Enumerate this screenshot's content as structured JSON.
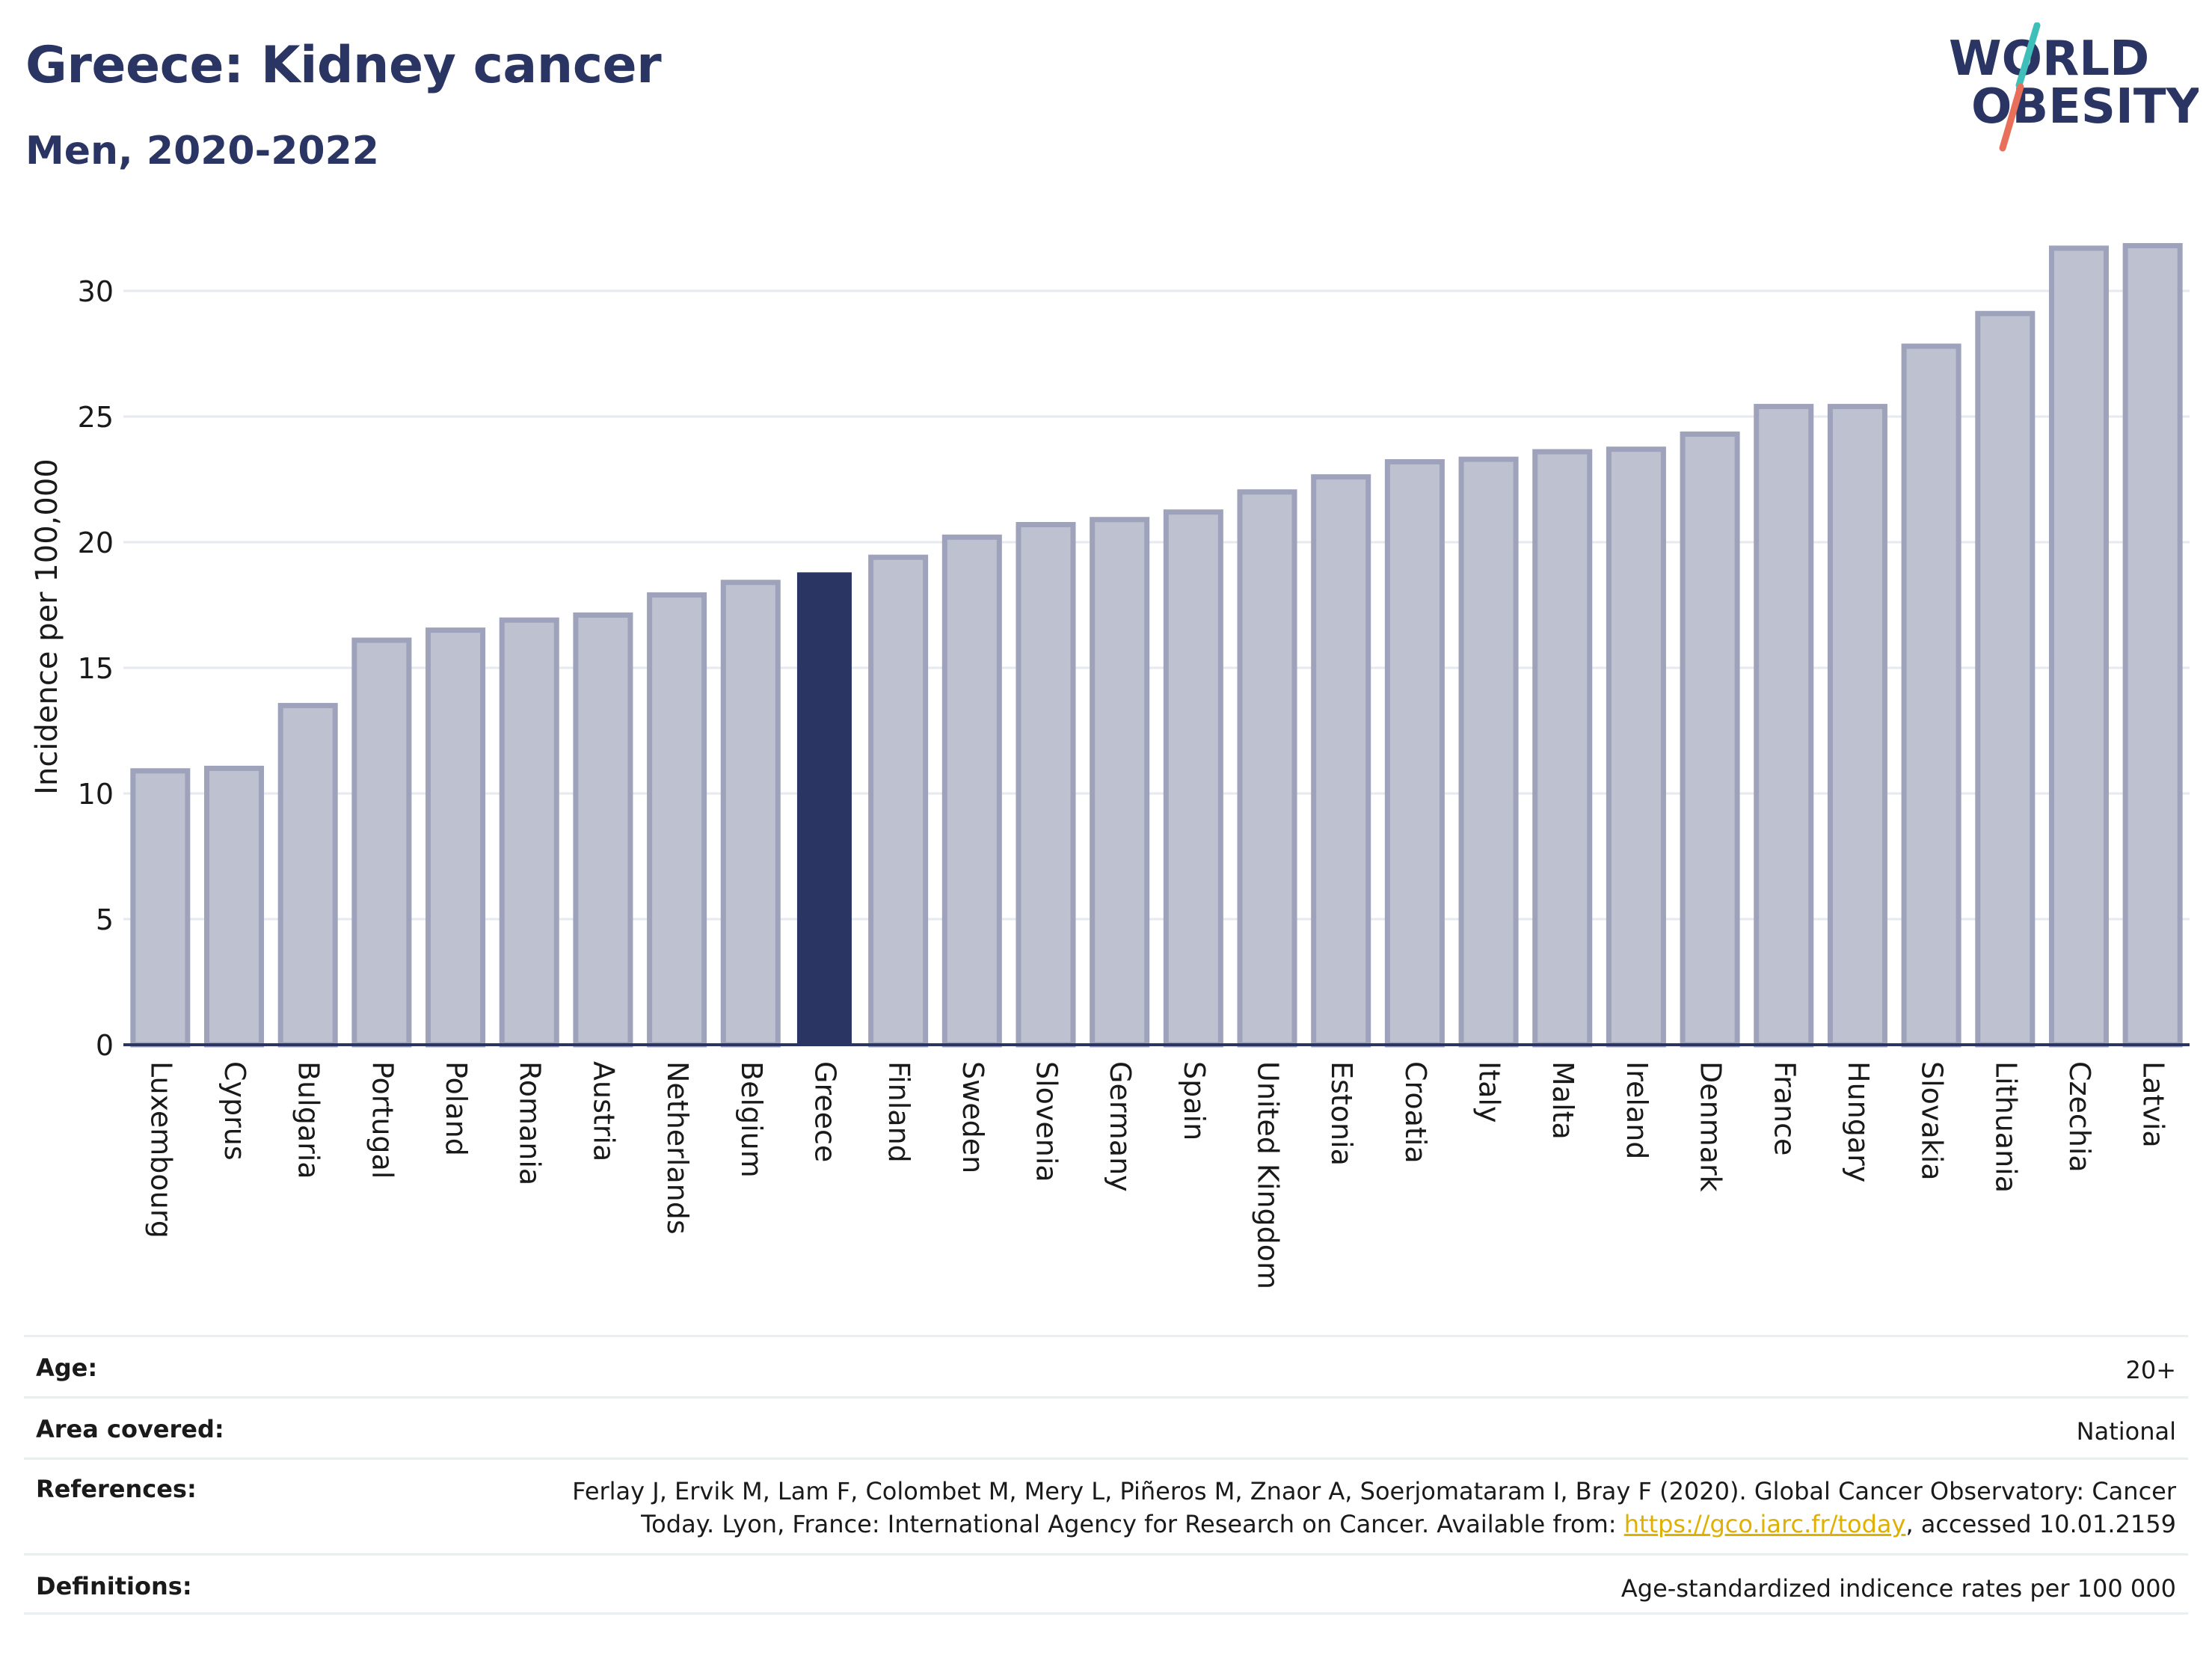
{
  "header": {
    "title": "Greece: Kidney cancer",
    "subtitle": "Men, 2020-2022"
  },
  "logo": {
    "line1": "WORLD",
    "line2": "OBESITY",
    "accent_colors": [
      "#3ebfb9",
      "#e8705a"
    ]
  },
  "colors": {
    "bar_fill": "#bec1d0",
    "bar_stroke": "#9ea3bb",
    "highlight": "#2a3563",
    "grid": "#e6e9ef",
    "axis": "#2a3563"
  },
  "chart_data": {
    "type": "bar",
    "title": "Greece: Kidney cancer",
    "subtitle": "Men, 2020-2022",
    "xlabel": "",
    "ylabel": "Incidence per 100,000",
    "ylim": [
      0,
      32
    ],
    "yticks": [
      0,
      5,
      10,
      15,
      20,
      25,
      30
    ],
    "grid": true,
    "highlight_category": "Greece",
    "categories": [
      "Luxembourg",
      "Cyprus",
      "Bulgaria",
      "Portugal",
      "Poland",
      "Romania",
      "Austria",
      "Netherlands",
      "Belgium",
      "Greece",
      "Finland",
      "Sweden",
      "Slovenia",
      "Germany",
      "Spain",
      "United Kingdom",
      "Estonia",
      "Croatia",
      "Italy",
      "Malta",
      "Ireland",
      "Denmark",
      "France",
      "Hungary",
      "Slovakia",
      "Lithuania",
      "Czechia",
      "Latvia"
    ],
    "values": [
      10.9,
      11.0,
      13.5,
      16.1,
      16.5,
      16.9,
      17.1,
      17.9,
      18.4,
      18.8,
      19.4,
      20.2,
      20.7,
      20.9,
      21.2,
      22.0,
      22.6,
      23.2,
      23.3,
      23.6,
      23.7,
      24.3,
      25.4,
      25.4,
      27.8,
      29.1,
      31.7,
      31.8
    ]
  },
  "info_table": [
    {
      "key": "Age:",
      "value": "20+"
    },
    {
      "key": "Area covered:",
      "value": "National"
    },
    {
      "key": "References:",
      "value_line1": "Ferlay J, Ervik M, Lam F, Colombet M, Mery L, Piñeros M, Znaor A, Soerjomataram I, Bray F (2020). Global Cancer Observatory: Cancer",
      "value_line2_pre": "Today. Lyon, France: International Agency for Research on Cancer. Available from: ",
      "link": "https://gco.iarc.fr/today",
      "value_line2_post": ", accessed 10.01.2159"
    },
    {
      "key": "Definitions:",
      "value": "Age-standardized indicence rates per 100 000"
    }
  ]
}
